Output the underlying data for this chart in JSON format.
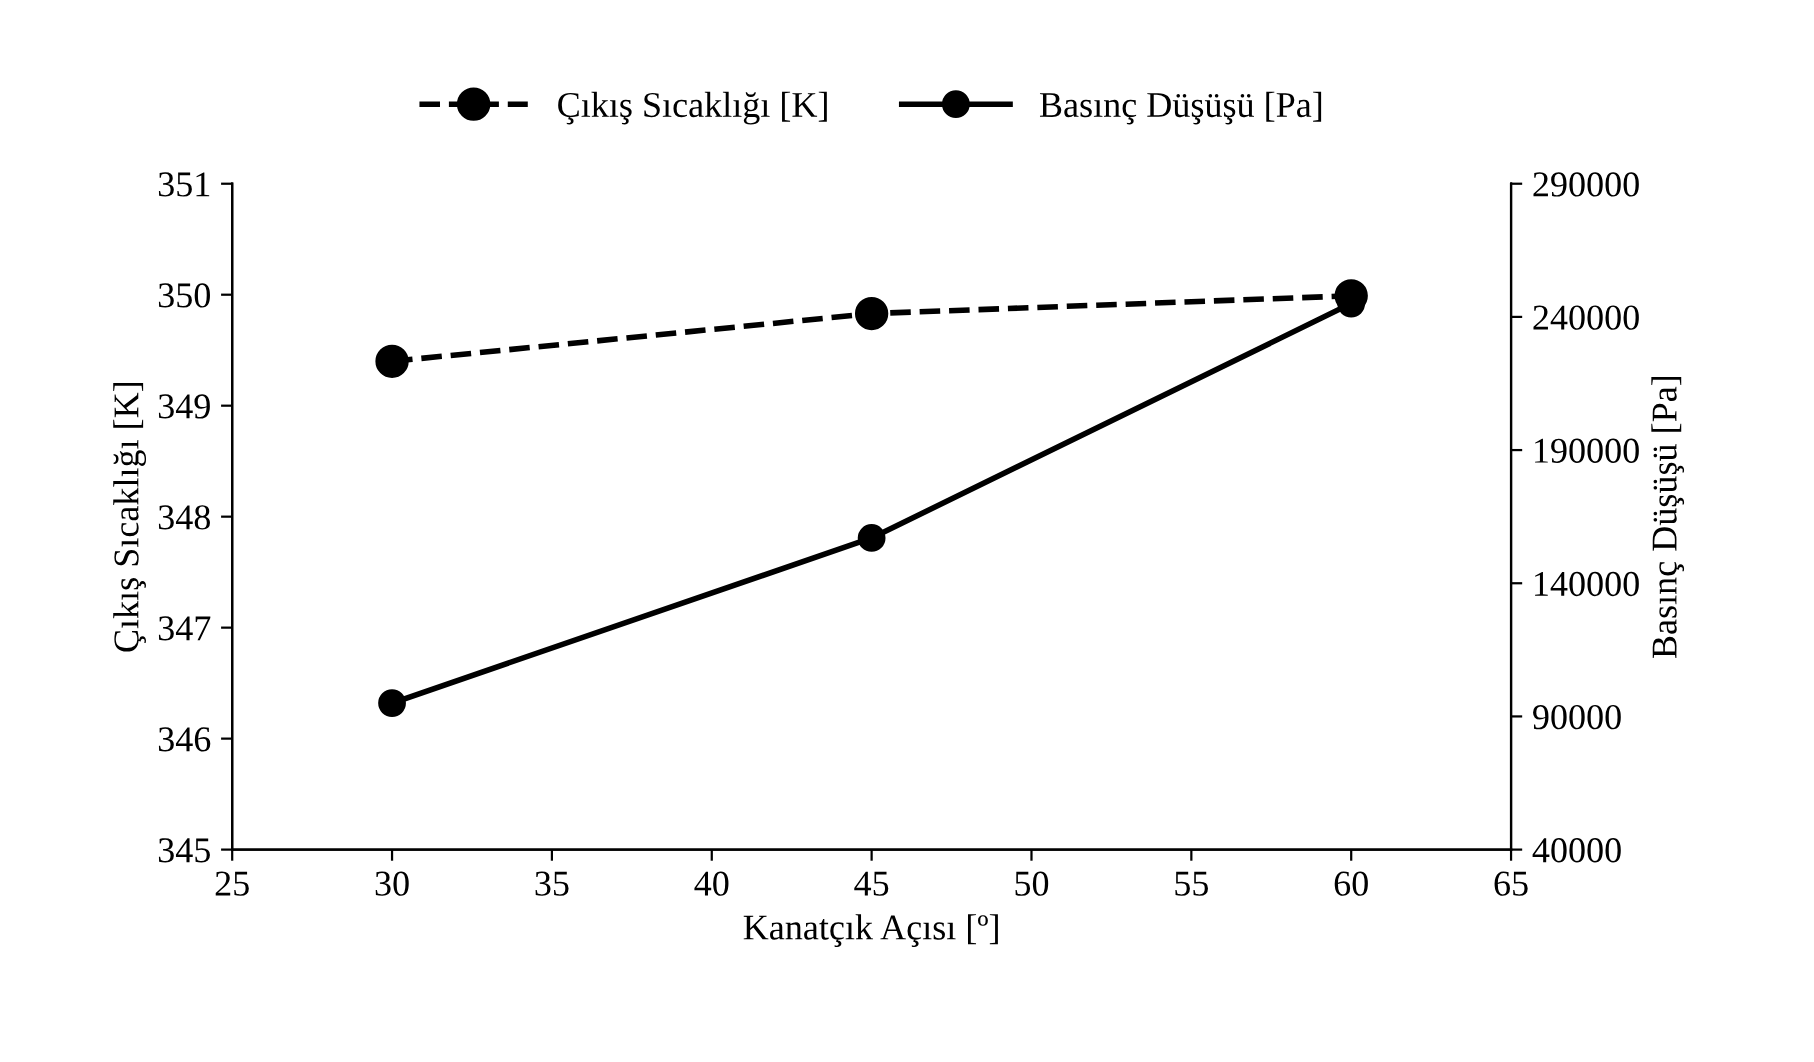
{
  "chart_data": {
    "type": "line",
    "xlabel": "Kanatçık Açısı [º]",
    "ylabel": "Çıkış Sıcaklığı [K]",
    "y2label": "Basınç Düşüşü [Pa]",
    "x": [
      30,
      45,
      60
    ],
    "series": [
      {
        "name": "Çıkış Sıcaklığı [K]",
        "color": "#000000",
        "values": [
          349.4,
          349.83,
          349.99
        ],
        "line_style": "dashed"
      },
      {
        "name": "Basınç Düşüşü [Pa]",
        "color": "#000000",
        "values": [
          95000,
          157000,
          245000
        ],
        "axis": "y2",
        "line_style": "solid"
      }
    ],
    "xlim": [
      25,
      65
    ],
    "xticks": [
      25,
      30,
      35,
      40,
      45,
      50,
      55,
      60,
      65
    ],
    "ylim": [
      345,
      351
    ],
    "yticks": [
      345,
      346,
      347,
      348,
      349,
      350,
      351
    ],
    "y2lim": [
      40000,
      290000
    ],
    "y2ticks": [
      40000,
      90000,
      140000,
      190000,
      240000,
      290000
    ],
    "marker": "circle",
    "grid": false,
    "legend": "top"
  }
}
